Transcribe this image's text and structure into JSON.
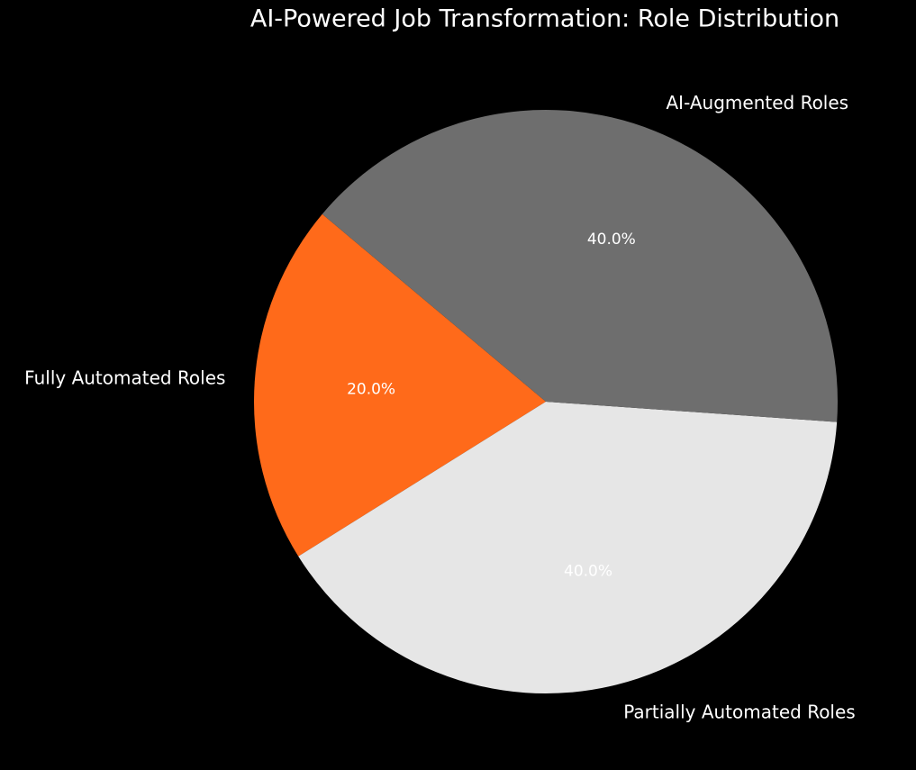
{
  "chart_data": {
    "type": "pie",
    "title": "AI-Powered Job Transformation: Role Distribution",
    "categories": [
      "Fully Automated Roles",
      "Partially Automated Roles",
      "AI-Augmented Roles"
    ],
    "values": [
      20,
      40,
      40
    ],
    "value_labels": [
      "20.0%",
      "40.0%",
      "40.0%"
    ],
    "colors": [
      "#ff6a1a",
      "#e6e6e6",
      "#6e6e6e"
    ],
    "startangle": 140
  }
}
